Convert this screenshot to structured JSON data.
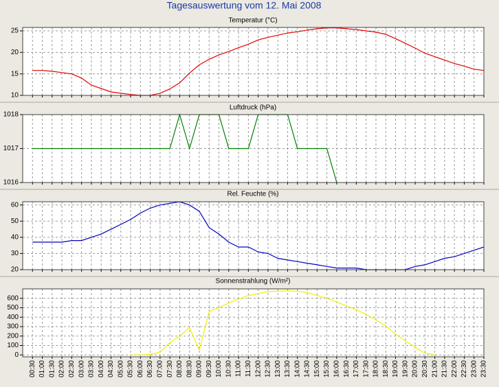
{
  "title": "Tagesauswertung vom 12. Mai 2008",
  "categories": [
    "00:30",
    "01:00",
    "01:30",
    "02:00",
    "02:30",
    "03:00",
    "03:30",
    "04:00",
    "04:30",
    "05:00",
    "05:30",
    "06:00",
    "06:30",
    "07:00",
    "07:30",
    "08:00",
    "08:30",
    "09:00",
    "09:30",
    "10:00",
    "10:30",
    "11:00",
    "11:30",
    "12:00",
    "12:30",
    "13:00",
    "13:30",
    "14:00",
    "14:30",
    "15:00",
    "15:30",
    "16:00",
    "16:30",
    "17:00",
    "17:30",
    "18:00",
    "18:30",
    "19:00",
    "19:30",
    "20:00",
    "20:30",
    "21:00",
    "21:30",
    "22:00",
    "22:30",
    "23:00",
    "23:30"
  ],
  "chart_data": [
    {
      "type": "line",
      "title": "Temperatur (°C)",
      "color": "#e00000",
      "ylim": [
        10,
        25.8
      ],
      "yticks": [
        10,
        15,
        20,
        25
      ],
      "grid": true,
      "values": [
        15.8,
        15.8,
        15.6,
        15.3,
        15.0,
        14.0,
        12.4,
        11.6,
        10.8,
        10.5,
        10.2,
        10.0,
        10.0,
        10.5,
        11.5,
        12.9,
        15.2,
        17.1,
        18.4,
        19.4,
        20.2,
        21.1,
        21.9,
        22.9,
        23.5,
        24.0,
        24.5,
        24.8,
        25.2,
        25.5,
        25.7,
        25.7,
        25.5,
        25.3,
        25.0,
        24.7,
        24.2,
        23.2,
        22.1,
        21.0,
        19.8,
        19.0,
        18.2,
        17.4,
        16.8,
        16.1,
        15.8
      ]
    },
    {
      "type": "line",
      "title": "Luftdruck (hPa)",
      "color": "#008000",
      "ylim": [
        1016,
        1018
      ],
      "yticks": [
        1016,
        1017,
        1018
      ],
      "grid": true,
      "values": [
        1017,
        1017,
        1017,
        1017,
        1017,
        1017,
        1017,
        1017,
        1017,
        1017,
        1017,
        1017,
        1017,
        1017,
        1017,
        1018,
        1017,
        1018,
        1018,
        1018,
        1017,
        1017,
        1017,
        1018,
        1018,
        1018,
        1018,
        1017,
        1017,
        1017,
        1017,
        1016,
        null,
        null,
        null,
        null,
        null,
        null,
        null,
        null,
        null,
        null,
        null,
        null,
        null,
        null,
        null
      ]
    },
    {
      "type": "line",
      "title": "Rel. Feuchte (%)",
      "color": "#0000c0",
      "ylim": [
        20,
        62
      ],
      "yticks": [
        20,
        30,
        40,
        50,
        60
      ],
      "grid": true,
      "values": [
        37,
        37,
        37,
        37,
        38,
        38,
        40,
        42,
        45,
        48,
        51,
        55,
        58,
        60,
        61,
        62,
        60,
        56,
        46,
        42,
        37,
        34,
        34,
        31,
        30,
        27,
        26,
        25,
        24,
        23,
        22,
        21,
        21,
        21,
        20,
        20,
        20,
        20,
        20,
        22,
        23,
        25,
        27,
        28,
        30,
        32,
        34
      ]
    },
    {
      "type": "line",
      "title": "Sonnenstrahlung (W/m²)",
      "color": "#f0f000",
      "ylim": [
        -20,
        700
      ],
      "yticks": [
        0,
        100,
        200,
        300,
        400,
        500,
        600
      ],
      "grid": true,
      "values": [
        null,
        null,
        null,
        null,
        null,
        null,
        null,
        null,
        null,
        null,
        0,
        0,
        5,
        30,
        130,
        200,
        290,
        50,
        460,
        500,
        550,
        590,
        630,
        650,
        670,
        675,
        680,
        675,
        660,
        630,
        600,
        560,
        520,
        480,
        430,
        370,
        310,
        220,
        150,
        80,
        20,
        0,
        null,
        null,
        null,
        null,
        null
      ]
    }
  ]
}
